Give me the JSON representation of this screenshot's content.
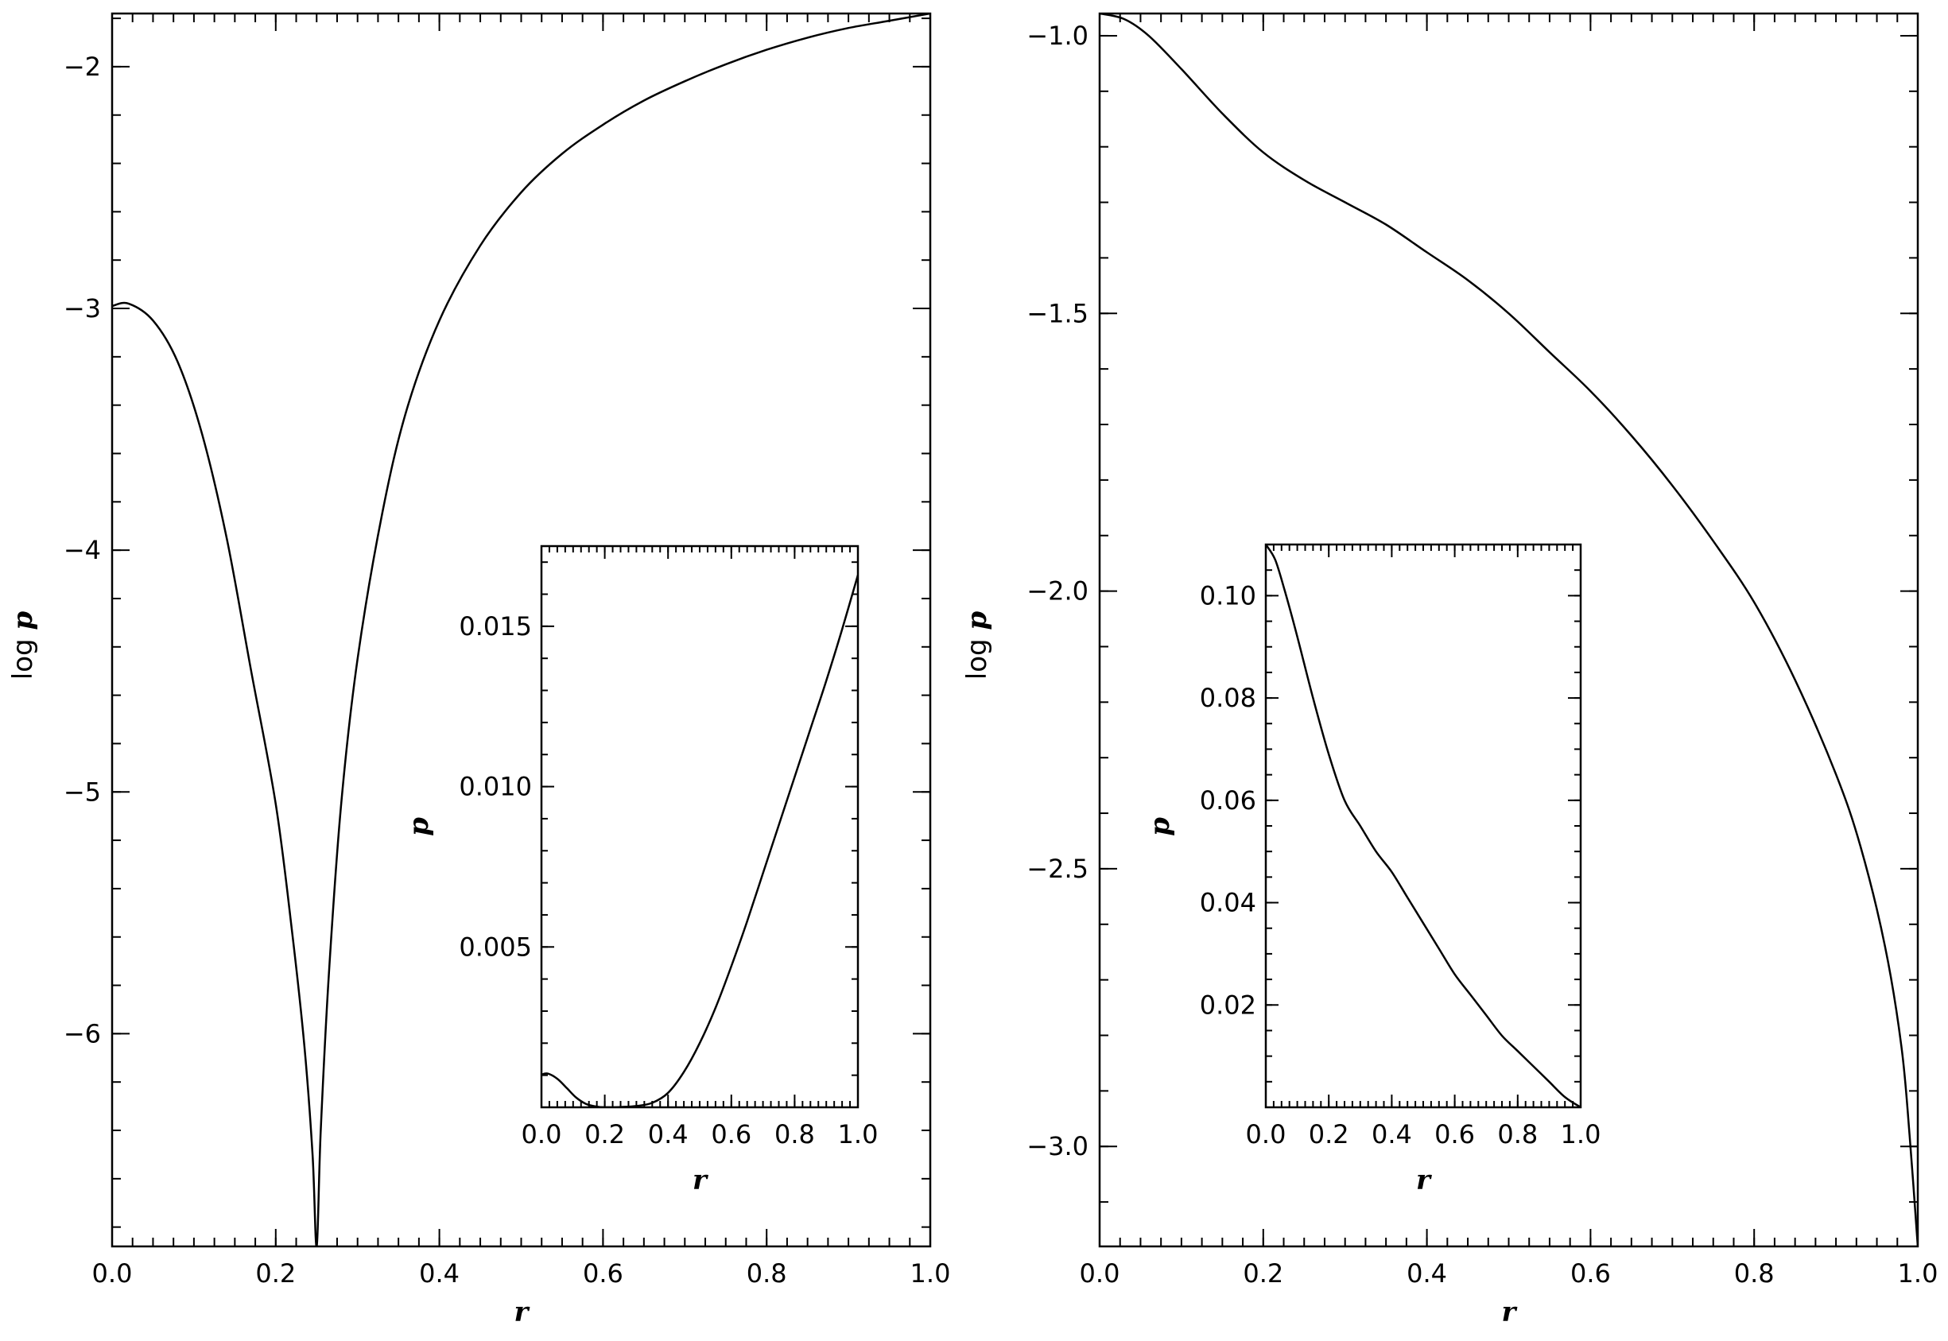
{
  "chart_data": [
    {
      "type": "line",
      "name": "left-main",
      "xlabel": "r",
      "ylabel_prefix": "log",
      "ylabel_var": "p",
      "xlim": [
        0.0,
        1.0
      ],
      "ylim": [
        -6.88,
        -1.78
      ],
      "xticks": [
        0.0,
        0.2,
        0.4,
        0.6,
        0.8,
        1.0
      ],
      "xtick_labels": [
        "0.0",
        "0.2",
        "0.4",
        "0.6",
        "0.8",
        "1.0"
      ],
      "yticks": [
        -2,
        -3,
        -4,
        -5,
        -6
      ],
      "ytick_labels": [
        "−2",
        "−3",
        "−4",
        "−5",
        "−6"
      ],
      "x": [
        0.0,
        0.02,
        0.05,
        0.08,
        0.11,
        0.14,
        0.17,
        0.2,
        0.22,
        0.235,
        0.245,
        0.25,
        0.255,
        0.265,
        0.28,
        0.3,
        0.33,
        0.36,
        0.4,
        0.45,
        0.5,
        0.55,
        0.6,
        0.65,
        0.7,
        0.75,
        0.8,
        0.85,
        0.9,
        0.95,
        1.0
      ],
      "y": [
        -2.99,
        -2.98,
        -3.05,
        -3.22,
        -3.52,
        -3.95,
        -4.5,
        -5.05,
        -5.58,
        -6.05,
        -6.5,
        -6.88,
        -6.4,
        -5.75,
        -5.05,
        -4.45,
        -3.85,
        -3.42,
        -3.05,
        -2.74,
        -2.52,
        -2.36,
        -2.24,
        -2.14,
        -2.06,
        -1.99,
        -1.93,
        -1.88,
        -1.84,
        -1.81,
        -1.78
      ]
    },
    {
      "type": "line",
      "name": "left-inset",
      "xlabel": "r",
      "ylabel_var": "p",
      "xlim": [
        0.0,
        1.0
      ],
      "ylim": [
        0.0,
        0.0175
      ],
      "xticks": [
        0.0,
        0.2,
        0.4,
        0.6,
        0.8,
        1.0
      ],
      "xtick_labels": [
        "0.0",
        "0.2",
        "0.4",
        "0.6",
        "0.8",
        "1.0"
      ],
      "yticks": [
        0.005,
        0.01,
        0.015
      ],
      "ytick_labels": [
        "0.005",
        "0.010",
        "0.015"
      ],
      "x": [
        0.0,
        0.02,
        0.05,
        0.08,
        0.11,
        0.14,
        0.17,
        0.2,
        0.25,
        0.3,
        0.35,
        0.4,
        0.45,
        0.5,
        0.55,
        0.6,
        0.65,
        0.7,
        0.75,
        0.8,
        0.85,
        0.9,
        0.95,
        1.0
      ],
      "y": [
        0.00102,
        0.00105,
        0.00089,
        0.0006,
        0.0003,
        0.00011,
        3e-05,
        0.0,
        1e-05,
        4e-05,
        0.00014,
        0.00045,
        0.0011,
        0.002,
        0.0031,
        0.0044,
        0.0058,
        0.0073,
        0.0088,
        0.0103,
        0.0118,
        0.0133,
        0.0149,
        0.0166
      ]
    },
    {
      "type": "line",
      "name": "right-main",
      "xlabel": "r",
      "ylabel_prefix": "log",
      "ylabel_var": "p",
      "xlim": [
        0.0,
        1.0
      ],
      "ylim": [
        -3.18,
        -0.96
      ],
      "xticks": [
        0.0,
        0.2,
        0.4,
        0.6,
        0.8,
        1.0
      ],
      "xtick_labels": [
        "0.0",
        "0.2",
        "0.4",
        "0.6",
        "0.8",
        "1.0"
      ],
      "yticks": [
        -1.0,
        -1.5,
        -2.0,
        -2.5,
        -3.0
      ],
      "ytick_labels": [
        "−1.0",
        "−1.5",
        "−2.0",
        "−2.5",
        "−3.0"
      ],
      "x": [
        0.0,
        0.03,
        0.06,
        0.1,
        0.15,
        0.2,
        0.25,
        0.3,
        0.35,
        0.4,
        0.45,
        0.5,
        0.55,
        0.6,
        0.65,
        0.7,
        0.75,
        0.8,
        0.85,
        0.9,
        0.93,
        0.96,
        0.98,
        0.99,
        1.0
      ],
      "y": [
        -0.96,
        -0.97,
        -1.0,
        -1.06,
        -1.14,
        -1.21,
        -1.26,
        -1.3,
        -1.34,
        -1.39,
        -1.44,
        -1.5,
        -1.57,
        -1.64,
        -1.72,
        -1.81,
        -1.91,
        -2.02,
        -2.16,
        -2.33,
        -2.46,
        -2.64,
        -2.82,
        -2.98,
        -3.18
      ]
    },
    {
      "type": "line",
      "name": "right-inset",
      "xlabel": "r",
      "ylabel_var": "p",
      "xlim": [
        0.0,
        1.0
      ],
      "ylim": [
        0.0,
        0.11
      ],
      "xticks": [
        0.0,
        0.2,
        0.4,
        0.6,
        0.8,
        1.0
      ],
      "xtick_labels": [
        "0.0",
        "0.2",
        "0.4",
        "0.6",
        "0.8",
        "1.0"
      ],
      "yticks": [
        0.02,
        0.04,
        0.06,
        0.08,
        0.1
      ],
      "ytick_labels": [
        "0.02",
        "0.04",
        "0.06",
        "0.08",
        "0.10"
      ],
      "x": [
        0.0,
        0.03,
        0.06,
        0.1,
        0.15,
        0.2,
        0.25,
        0.3,
        0.35,
        0.4,
        0.45,
        0.5,
        0.55,
        0.6,
        0.65,
        0.7,
        0.75,
        0.8,
        0.85,
        0.9,
        0.95,
        1.0
      ],
      "y": [
        0.11,
        0.107,
        0.101,
        0.092,
        0.08,
        0.069,
        0.06,
        0.055,
        0.05,
        0.046,
        0.041,
        0.036,
        0.031,
        0.026,
        0.022,
        0.018,
        0.014,
        0.011,
        0.008,
        0.005,
        0.002,
        0.0
      ]
    }
  ]
}
